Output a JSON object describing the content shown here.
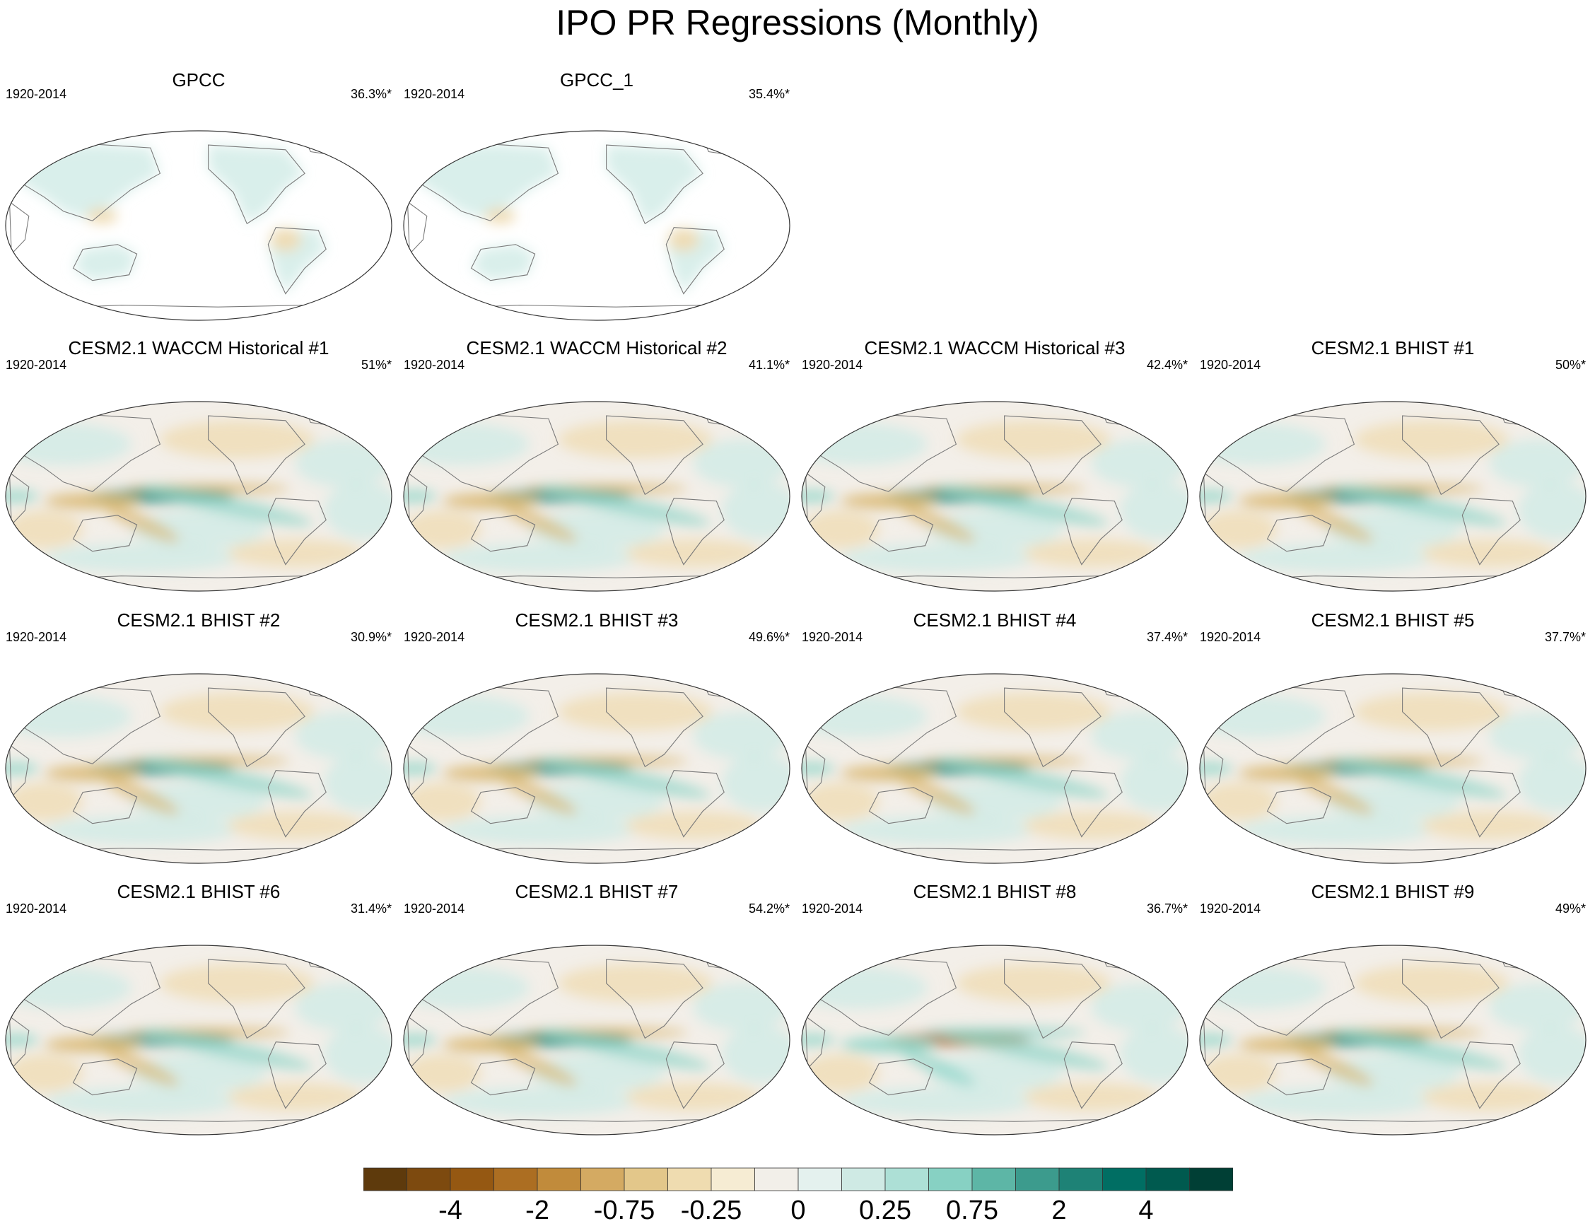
{
  "figure": {
    "title": "IPO PR Regressions (Monthly)"
  },
  "colors": {
    "ocean": "#ffffff",
    "land_outline": "#7a7a7a",
    "neutral": "#f3efe9",
    "brown_mid": "#d8b46a",
    "brown_light": "#efdcb4",
    "teal_light": "#cfebe6",
    "teal_mid": "#88d3c6",
    "teal_dark": "#2b8f82",
    "brown_dark": "#a9681f"
  },
  "panels": [
    {
      "title": "GPCC",
      "years": "1920-2014",
      "pct": "36.3%*",
      "kind": "obs"
    },
    {
      "title": "GPCC_1",
      "years": "1920-2014",
      "pct": "35.4%*",
      "kind": "obs"
    },
    {
      "title": "CESM2.1 WACCM Historical #1",
      "years": "1920-2014",
      "pct": "51%*",
      "kind": "model",
      "strength": 1.0
    },
    {
      "title": "CESM2.1 WACCM Historical #2",
      "years": "1920-2014",
      "pct": "41.1%*",
      "kind": "model",
      "strength": 0.7
    },
    {
      "title": "CESM2.1 WACCM Historical #3",
      "years": "1920-2014",
      "pct": "42.4%*",
      "kind": "model",
      "strength": 0.9
    },
    {
      "title": "CESM2.1 BHIST #1",
      "years": "1920-2014",
      "pct": "50%*",
      "kind": "model",
      "strength": 0.8
    },
    {
      "title": "CESM2.1 BHIST #2",
      "years": "1920-2014",
      "pct": "30.9%*",
      "kind": "model",
      "strength": 0.8
    },
    {
      "title": "CESM2.1 BHIST #3",
      "years": "1920-2014",
      "pct": "49.6%*",
      "kind": "model",
      "strength": 0.7
    },
    {
      "title": "CESM2.1 BHIST #4",
      "years": "1920-2014",
      "pct": "37.4%*",
      "kind": "model",
      "strength": 0.9
    },
    {
      "title": "CESM2.1 BHIST #5",
      "years": "1920-2014",
      "pct": "37.7%*",
      "kind": "model",
      "strength": 0.6
    },
    {
      "title": "CESM2.1 BHIST #6",
      "years": "1920-2014",
      "pct": "31.4%*",
      "kind": "model",
      "strength": 0.5
    },
    {
      "title": "CESM2.1 BHIST #7",
      "years": "1920-2014",
      "pct": "54.2%*",
      "kind": "model",
      "strength": 1.0
    },
    {
      "title": "CESM2.1 BHIST #8",
      "years": "1920-2014",
      "pct": "36.7%*",
      "kind": "model",
      "strength": 0.6,
      "inverted": true
    },
    {
      "title": "CESM2.1 BHIST #9",
      "years": "1920-2014",
      "pct": "49%*",
      "kind": "model",
      "strength": 0.9
    }
  ],
  "colorbar": {
    "colors": [
      "#5e3a0c",
      "#7d4a0f",
      "#955812",
      "#ac6e22",
      "#c18b3b",
      "#d4aa62",
      "#e3c78a",
      "#efdcb0",
      "#f6ecd3",
      "#f2efe9",
      "#e4f1ee",
      "#cfeae4",
      "#ade0d6",
      "#87d1c3",
      "#5db6a6",
      "#3c9b8d",
      "#1e8276",
      "#006e63",
      "#005a4f",
      "#003f35"
    ],
    "labels": [
      "-4",
      "-2",
      "-0.75",
      "-0.25",
      "0",
      "0.25",
      "0.75",
      "2",
      "4"
    ]
  }
}
